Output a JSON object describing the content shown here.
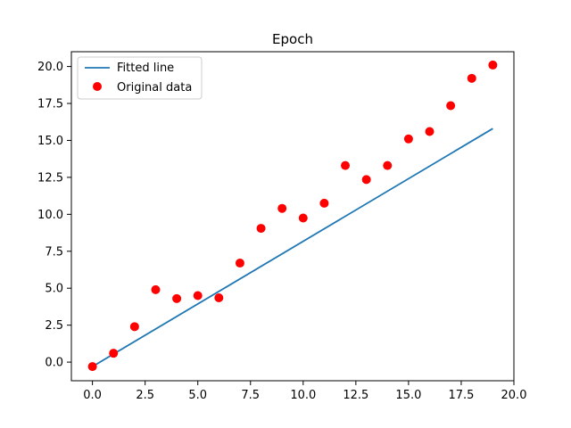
{
  "chart_data": {
    "type": "scatter",
    "title": "Epoch",
    "xlabel": "",
    "ylabel": "",
    "xlim": [
      -1.0,
      20.0
    ],
    "ylim": [
      -1.26,
      21.0
    ],
    "x_ticks": [
      0.0,
      2.5,
      5.0,
      7.5,
      10.0,
      12.5,
      15.0,
      17.5,
      20.0
    ],
    "x_tick_labels": [
      "0.0",
      "2.5",
      "5.0",
      "7.5",
      "10.0",
      "12.5",
      "15.0",
      "17.5",
      "20.0"
    ],
    "y_ticks": [
      0.0,
      2.5,
      5.0,
      7.5,
      10.0,
      12.5,
      15.0,
      17.5,
      20.0
    ],
    "y_tick_labels": [
      "0.0",
      "2.5",
      "5.0",
      "7.5",
      "10.0",
      "12.5",
      "15.0",
      "17.5",
      "20.0"
    ],
    "grid": false,
    "legend_position": "top-left",
    "series": [
      {
        "name": "Fitted line",
        "kind": "line",
        "color": "#1f77b4",
        "x": [
          0,
          19
        ],
        "y": [
          -0.3,
          15.8
        ]
      },
      {
        "name": "Original data",
        "kind": "scatter",
        "color": "#ff0000",
        "x": [
          0,
          1,
          2,
          3,
          4,
          5,
          6,
          7,
          8,
          9,
          10,
          11,
          12,
          13,
          14,
          15,
          16,
          17,
          18,
          19
        ],
        "y": [
          -0.3,
          0.6,
          2.4,
          4.9,
          4.3,
          4.5,
          4.35,
          6.7,
          9.05,
          10.4,
          9.75,
          10.75,
          13.3,
          12.35,
          13.3,
          15.1,
          15.6,
          17.35,
          19.2,
          20.1
        ]
      }
    ]
  }
}
